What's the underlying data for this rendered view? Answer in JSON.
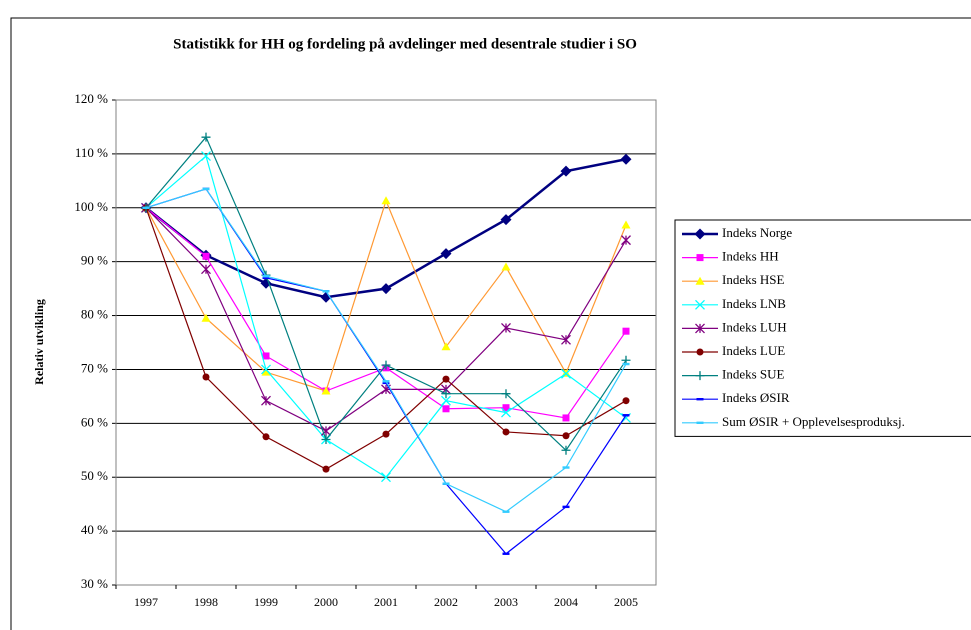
{
  "chart_data": {
    "type": "line",
    "title": "Statistikk for HH og fordeling på avdelinger med desentrale studier i SO",
    "y_label": "Relativ utvikling",
    "categories": [
      "1997",
      "1998",
      "1999",
      "2000",
      "2001",
      "2002",
      "2003",
      "2004",
      "2005"
    ],
    "ylim": [
      30,
      120
    ],
    "yticks": [
      {
        "value": 30,
        "label": "30 %"
      },
      {
        "value": 40,
        "label": "40 %"
      },
      {
        "value": 50,
        "label": "50 %"
      },
      {
        "value": 60,
        "label": "60 %"
      },
      {
        "value": 70,
        "label": "70 %"
      },
      {
        "value": 80,
        "label": "80 %"
      },
      {
        "value": 90,
        "label": "90 %"
      },
      {
        "value": 100,
        "label": "100 %"
      },
      {
        "value": 110,
        "label": "110 %"
      },
      {
        "value": 120,
        "label": "120 %"
      }
    ],
    "grid": true,
    "legend": "right",
    "series": [
      {
        "name": "Indeks Norge",
        "color": "#000080",
        "marker": "diamond",
        "marker_color": "#000080",
        "values": [
          100,
          91.2,
          86,
          83.4,
          85,
          91.5,
          97.8,
          106.8,
          109
        ]
      },
      {
        "name": "Indeks  HH",
        "color": "#ff00ff",
        "marker": "square",
        "marker_color": "#ff00ff",
        "values": [
          100,
          91,
          72.5,
          66,
          70.3,
          62.7,
          62.9,
          61,
          77.1
        ]
      },
      {
        "name": "Indeks  HSE",
        "color": "#ff9933",
        "marker": "triangle",
        "marker_color": "#ffff00",
        "values": [
          100,
          79.5,
          69.5,
          66,
          101.3,
          74.2,
          89,
          69.3,
          96.8
        ]
      },
      {
        "name": "Indeks  LNB",
        "color": "#00ffff",
        "marker": "x",
        "marker_color": "#00ffff",
        "values": [
          100,
          109.6,
          70,
          57,
          50,
          64.2,
          62,
          69.2,
          61
        ]
      },
      {
        "name": "Indeks  LUH",
        "color": "#800080",
        "marker": "star",
        "marker_color": "#800080",
        "values": [
          100,
          88.6,
          64.2,
          58.6,
          66.3,
          66.3,
          77.7,
          75.5,
          94
        ]
      },
      {
        "name": "Indeks  LUE",
        "color": "#800000",
        "marker": "circle",
        "marker_color": "#800000",
        "values": [
          100,
          68.6,
          57.5,
          51.5,
          58,
          68.2,
          58.4,
          57.7,
          64.2
        ]
      },
      {
        "name": "Indeks  SUE",
        "color": "#008080",
        "marker": "plus",
        "marker_color": "#008080",
        "values": [
          100,
          113.1,
          87.5,
          57,
          70.8,
          65.5,
          65.5,
          55,
          71.7
        ]
      },
      {
        "name": "Indeks  ØSIR",
        "color": "#0000ff",
        "marker": "dash",
        "marker_color": "#0000ff",
        "values": [
          100,
          103.5,
          87,
          84.5,
          67.5,
          48.8,
          35.8,
          44.5,
          61.5
        ]
      },
      {
        "name": "Sum ØSIR + Opplevelsesproduksj.",
        "color": "#33ccff",
        "marker": "dash",
        "marker_color": "#33ccff",
        "values": [
          100,
          103.5,
          87.3,
          84.5,
          67.8,
          48.8,
          43.6,
          51.8,
          71
        ]
      }
    ]
  }
}
